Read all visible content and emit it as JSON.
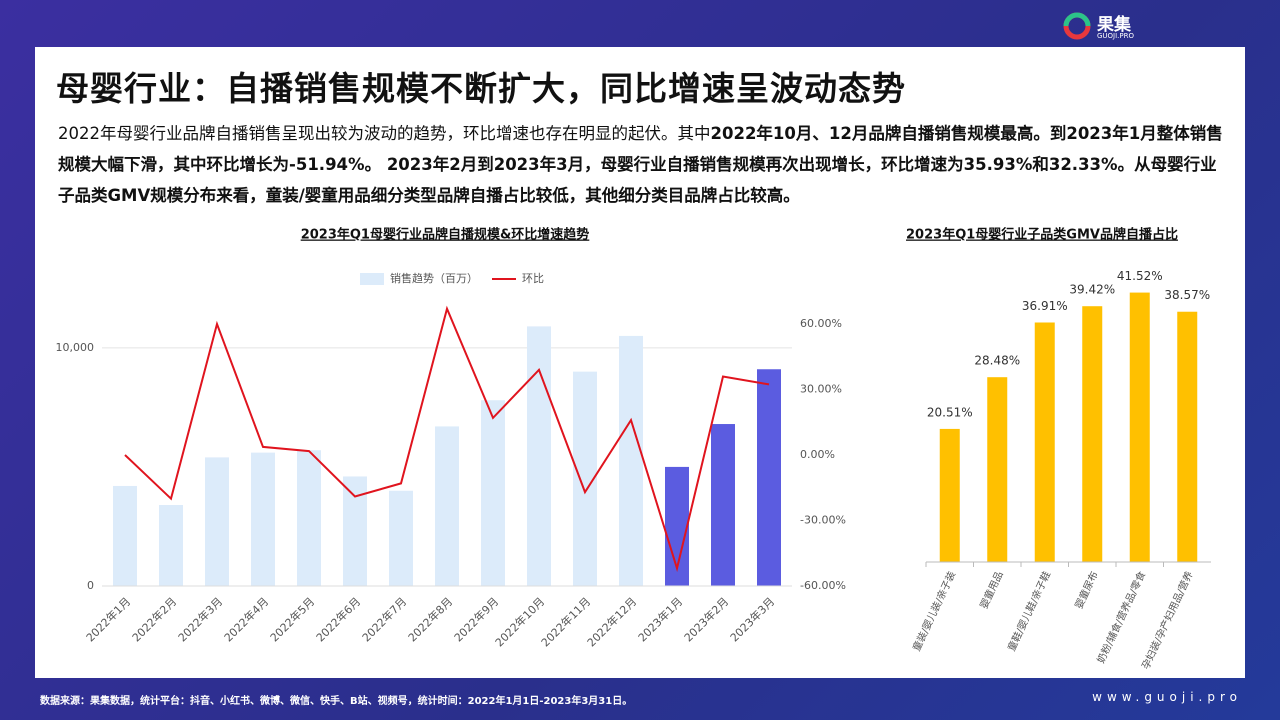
{
  "header": {
    "title": "母婴行业：自播销售规模不断扩大，同比增速呈波动态势",
    "paragraph": [
      {
        "text": "2022年母婴行业品牌自播销售呈现出较为波动的趋势，环比增速也存在明显的起伏。其中",
        "bold": false
      },
      {
        "text": "2022年10月、12月品牌自播销售规模最高。到2023年1月整体销售规模大幅下滑，其中环比增长为-51.94%。 2023年2月到2023年3月，母婴行业自播销售规模再次出现增长，环比增速为35.93%和32.33%。从母婴行业子品类GMV规模分布来看，童装/婴童用品细分类型品牌自播占比较低，其他细分类目品牌占比较高。",
        "bold": true
      }
    ]
  },
  "logo": {
    "name": "果集",
    "sub": "GUOJI.PRO"
  },
  "footer": {
    "source": "数据来源：果集数据，统计平台：抖音、小红书、微博、微信、快手、B站、视频号，统计时间：2022年1月1日-2023年3月31日。",
    "site": "www.guoji.pro"
  },
  "chart_data": [
    {
      "type": "combo",
      "title": "2023年Q1母婴行业品牌自播规模&环比增速趋势",
      "categories": [
        "2022年1月",
        "2022年2月",
        "2022年3月",
        "2022年4月",
        "2022年5月",
        "2022年6月",
        "2022年7月",
        "2022年8月",
        "2022年9月",
        "2022年10月",
        "2022年11月",
        "2022年12月",
        "2023年1月",
        "2023年2月",
        "2023年3月"
      ],
      "series": [
        {
          "name": "销售趋势（百万）",
          "type": "bar",
          "color": "#dcebfa",
          "colors": [
            "#dcebfa",
            "#dcebfa",
            "#dcebfa",
            "#dcebfa",
            "#dcebfa",
            "#dcebfa",
            "#dcebfa",
            "#dcebfa",
            "#dcebfa",
            "#dcebfa",
            "#dcebfa",
            "#dcebfa",
            "#5b5ce0",
            "#5b5ce0",
            "#5b5ce0"
          ],
          "values": [
            4200,
            3400,
            5400,
            5600,
            5700,
            4600,
            4000,
            6700,
            7800,
            10900,
            9000,
            10500,
            5000,
            6800,
            9100
          ]
        },
        {
          "name": "环比",
          "type": "line",
          "color": "#e0141e",
          "axis": "y2",
          "values": [
            0,
            -20,
            60,
            3.7,
            1.8,
            -19,
            -13,
            67,
            17,
            39,
            -17,
            16,
            -51.94,
            35.93,
            32.33
          ]
        }
      ],
      "ylim": [
        0,
        11000
      ],
      "yticks": [
        0,
        {
          "value": 10000,
          "label": "10,000"
        }
      ],
      "y2lim": [
        -60,
        60
      ],
      "y2ticks": [
        {
          "value": -60,
          "label": "-60.00%"
        },
        {
          "value": -30,
          "label": "-30.00%"
        },
        {
          "value": 0,
          "label": "0.00%"
        },
        {
          "value": 30,
          "label": "30.00%"
        },
        {
          "value": 60,
          "label": "60.00%"
        }
      ],
      "grid": true
    },
    {
      "type": "bar",
      "title": "2023年Q1母婴行业子品类GMV品牌自播占比",
      "categories": [
        "童装/婴儿装/亲子装",
        "婴童用品",
        "童鞋/婴儿鞋/亲子鞋",
        "婴童尿布",
        "奶粉/辅食/营养品/零食",
        "孕妇装/孕产妇用品/营养"
      ],
      "values": [
        20.51,
        28.48,
        36.91,
        39.42,
        41.52,
        38.57
      ],
      "value_labels": [
        "20.51%",
        "28.48%",
        "36.91%",
        "39.42%",
        "41.52%",
        "38.57%"
      ],
      "color": "#ffc000",
      "ylim": [
        0,
        45
      ]
    }
  ]
}
